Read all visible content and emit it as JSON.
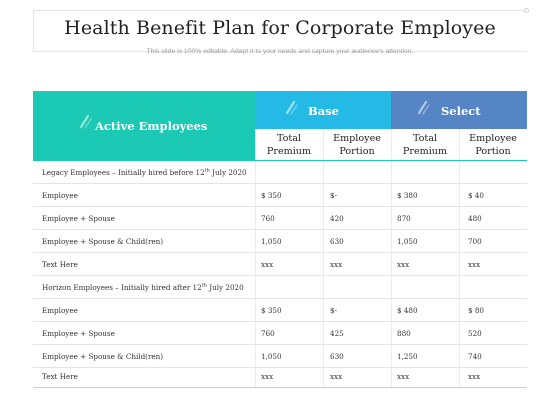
{
  "title": "Health Benefit Plan for Corporate Employee",
  "subtitle": "This slide is 100% editable. Adapt it to your needs and capture your audience's attention.",
  "headers": {
    "active": "Active Employees",
    "base": "Base",
    "select": "Select",
    "sub": [
      [
        "Total",
        "Premium"
      ],
      [
        "Employee",
        "Portion"
      ],
      [
        "Total",
        "Premium"
      ],
      [
        "Employee",
        "Portion"
      ]
    ]
  },
  "colors": {
    "active": "#1cc9b4",
    "base": "#25b9e6",
    "select": "#5585c4"
  },
  "sections": [
    {
      "heading_pre": "Legacy Employees – Initially  hired before 12",
      "heading_sup": "th",
      "heading_post": " July 2020",
      "rows": [
        {
          "label": "Employee",
          "values": [
            "$ 350",
            "$-",
            "$ 380",
            "$ 40"
          ]
        },
        {
          "label": "Employee + Spouse",
          "values": [
            "760",
            "420",
            "870",
            "480"
          ]
        },
        {
          "label": "Employee + Spouse & Child(ren)",
          "values": [
            "1,050",
            "630",
            "1,050",
            "700"
          ]
        },
        {
          "label": "Text Here",
          "values": [
            "xxx",
            "xxx",
            "xxx",
            "xxx"
          ]
        }
      ]
    },
    {
      "heading_pre": "Horizon Employees – Initially hired after 12",
      "heading_sup": "th",
      "heading_post": " July 2020",
      "rows": [
        {
          "label": "Employee",
          "values": [
            "$ 350",
            "$-",
            "$ 480",
            "$ 80"
          ]
        },
        {
          "label": "Employee + Spouse",
          "values": [
            "760",
            "425",
            "880",
            "520"
          ]
        },
        {
          "label": "Employee + Spouse & Child(ren)",
          "values": [
            "1,050",
            "630",
            "1,250",
            "740"
          ]
        },
        {
          "label": "Text Here",
          "values": [
            "xxx",
            "xxx",
            "xxx",
            "xxx"
          ]
        }
      ]
    }
  ]
}
